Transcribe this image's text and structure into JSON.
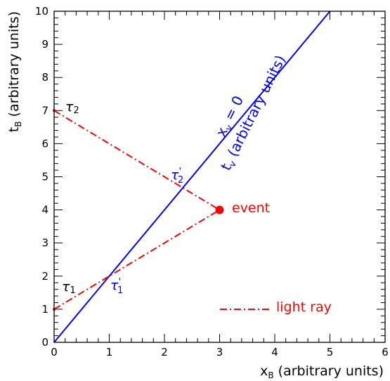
{
  "chart_data": {
    "type": "line",
    "title": "",
    "xlabel": "x_B (arbitrary units)",
    "ylabel": "t_B (arbitrary units)",
    "xlabel_main": "x",
    "xlabel_sub": "B",
    "xlabel_rest": " (arbitrary units)",
    "ylabel_main": "t",
    "ylabel_sub": "B",
    "ylabel_rest": " (arbitrary units)",
    "xlim": [
      0,
      6
    ],
    "ylim": [
      0,
      10
    ],
    "xticks": [
      0,
      1,
      2,
      3,
      4,
      5,
      6
    ],
    "yticks": [
      0,
      1,
      2,
      3,
      4,
      5,
      6,
      7,
      8,
      9,
      10
    ],
    "xtick_labels": [
      "0",
      "1",
      "2",
      "3",
      "4",
      "5",
      "6"
    ],
    "ytick_labels": [
      "0",
      "1",
      "2",
      "3",
      "4",
      "5",
      "6",
      "7",
      "8",
      "9",
      "10"
    ],
    "grid": false,
    "series": [
      {
        "name": "",
        "style": "solid",
        "color": "#0000ff",
        "x": [
          0,
          5
        ],
        "y": [
          0,
          10
        ]
      },
      {
        "name": "",
        "style": "dashdot",
        "color": "#ff0000",
        "x": [
          0,
          3
        ],
        "y": [
          1,
          4
        ]
      },
      {
        "name": "",
        "style": "dashdot",
        "color": "#ff0000",
        "x": [
          0,
          3
        ],
        "y": [
          7,
          4
        ]
      }
    ],
    "event_point": {
      "x": 3,
      "y": 4,
      "color": "#ff0000"
    },
    "tau_endpoints": [
      {
        "x": 0,
        "y": 1
      },
      {
        "x": 0,
        "y": 7
      }
    ],
    "annotations": {
      "event": "event",
      "tau": "τ",
      "tau1_sub": "1",
      "tau2_sub": "2",
      "tau1p_sub": "1",
      "tau2p_sub": "2",
      "prime": "'",
      "xv_main": "x",
      "xv_sub": "v",
      "xv_rest": " = 0",
      "tv_main": "t",
      "tv_sub": "v",
      "tv_rest": " (arbitrary units)"
    },
    "legend": {
      "label": "light ray",
      "color": "#ff0000",
      "style": "dashdot"
    }
  }
}
